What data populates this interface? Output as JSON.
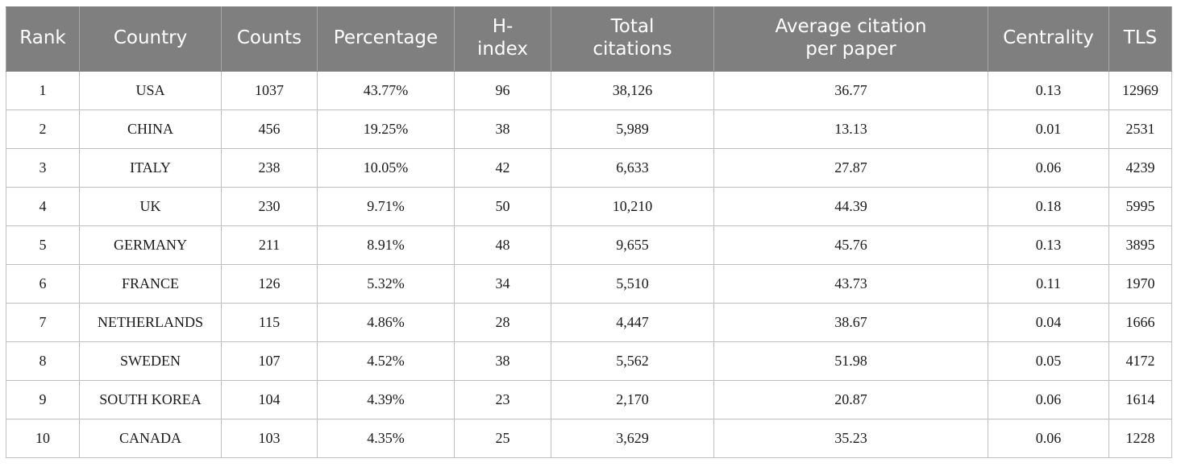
{
  "table": {
    "columns": [
      "Rank",
      "Country",
      "Counts",
      "Percentage",
      "H-\nindex",
      "Total\ncitations",
      "Average citation\nper paper",
      "Centrality",
      "TLS"
    ],
    "rows": [
      [
        "1",
        "USA",
        "1037",
        "43.77%",
        "96",
        "38,126",
        "36.77",
        "0.13",
        "12969"
      ],
      [
        "2",
        "CHINA",
        "456",
        "19.25%",
        "38",
        "5,989",
        "13.13",
        "0.01",
        "2531"
      ],
      [
        "3",
        "ITALY",
        "238",
        "10.05%",
        "42",
        "6,633",
        "27.87",
        "0.06",
        "4239"
      ],
      [
        "4",
        "UK",
        "230",
        "9.71%",
        "50",
        "10,210",
        "44.39",
        "0.18",
        "5995"
      ],
      [
        "5",
        "GERMANY",
        "211",
        "8.91%",
        "48",
        "9,655",
        "45.76",
        "0.13",
        "3895"
      ],
      [
        "6",
        "FRANCE",
        "126",
        "5.32%",
        "34",
        "5,510",
        "43.73",
        "0.11",
        "1970"
      ],
      [
        "7",
        "NETHERLANDS",
        "115",
        "4.86%",
        "28",
        "4,447",
        "38.67",
        "0.04",
        "1666"
      ],
      [
        "8",
        "SWEDEN",
        "107",
        "4.52%",
        "38",
        "5,562",
        "51.98",
        "0.05",
        "4172"
      ],
      [
        "9",
        "SOUTH KOREA",
        "104",
        "4.39%",
        "23",
        "2,170",
        "20.87",
        "0.06",
        "1614"
      ],
      [
        "10",
        "CANADA",
        "103",
        "4.35%",
        "25",
        "3,629",
        "35.23",
        "0.06",
        "1228"
      ]
    ]
  }
}
